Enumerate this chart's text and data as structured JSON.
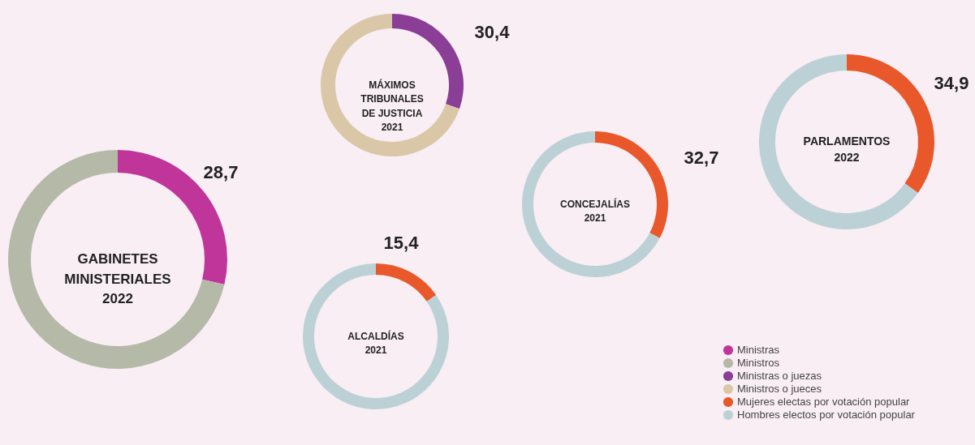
{
  "chart_data": [
    {
      "type": "donut",
      "title": "GABINETES\nMINISTERIALES\n2022",
      "categories": [
        "Ministras",
        "Ministros"
      ],
      "values": [
        28.7,
        71.3
      ],
      "colors": [
        "#c0359a",
        "#b5b9a8"
      ],
      "value_labels": [
        "28,7",
        null
      ],
      "legend": "bottom right"
    },
    {
      "type": "donut",
      "title": "MÁXIMOS\nTRIBUNALES\nDE JUSTICIA\n2021",
      "categories": [
        "Ministras o juezas",
        "Ministros o jueces"
      ],
      "values": [
        30.4,
        69.6
      ],
      "colors": [
        "#8a3e96",
        "#d9c7a8"
      ],
      "value_labels": [
        "30,4",
        null
      ],
      "legend": "bottom right"
    },
    {
      "type": "donut",
      "title": "ALCALDÍAS\n2021",
      "categories": [
        "Mujeres electas por votación popular",
        "Hombres electos por votación popular"
      ],
      "values": [
        15.4,
        84.6
      ],
      "colors": [
        "#e8582a",
        "#bcd1d6"
      ],
      "value_labels": [
        "15,4",
        null
      ],
      "legend": "bottom right"
    },
    {
      "type": "donut",
      "title": "CONCEJALÍAS\n2021",
      "categories": [
        null,
        null
      ],
      "values": [
        32.7,
        67.3
      ],
      "colors": [
        "#e8582a",
        "#bcd1d6"
      ],
      "value_labels": [
        "32,7",
        null
      ]
    },
    {
      "type": "donut",
      "title": "PARLAMENTOS\n2022",
      "categories": [
        null,
        null
      ],
      "values": [
        34.9,
        65.1
      ],
      "colors": [
        "#e8582a",
        "#bcd1d6"
      ],
      "value_labels": [
        "34,9",
        null
      ]
    }
  ]
}
